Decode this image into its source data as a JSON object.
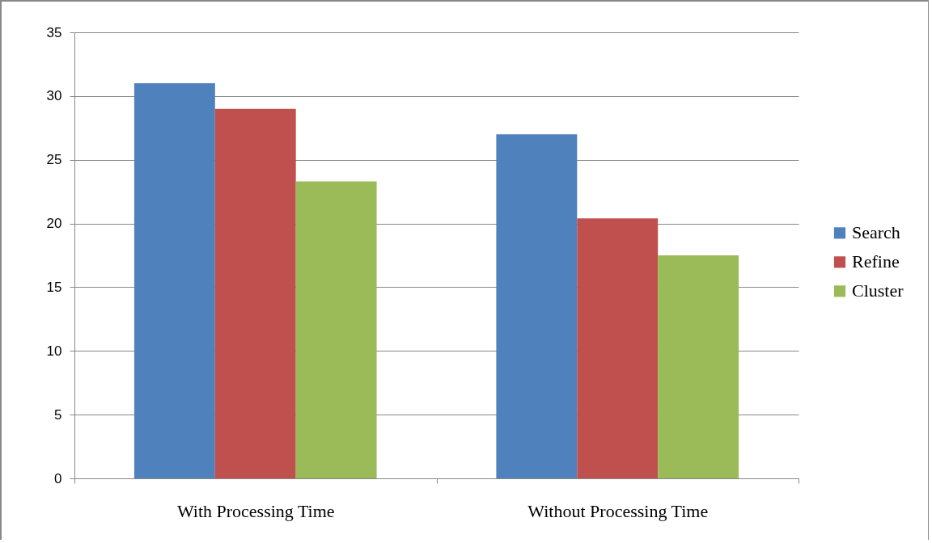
{
  "chart_data": {
    "type": "bar",
    "categories": [
      "With Processing Time",
      "Without Processing Time"
    ],
    "series": [
      {
        "name": "Search",
        "color": "#4f81bd",
        "values": [
          31,
          27
        ]
      },
      {
        "name": "Refine",
        "color": "#c0504d",
        "values": [
          29,
          20.4
        ]
      },
      {
        "name": "Cluster",
        "color": "#9bbb59",
        "values": [
          23.3,
          17.5
        ]
      }
    ],
    "ylim": [
      0,
      35
    ],
    "yticks": [
      0,
      5,
      10,
      15,
      20,
      25,
      30,
      35
    ],
    "grid": "y",
    "legend": "right"
  }
}
